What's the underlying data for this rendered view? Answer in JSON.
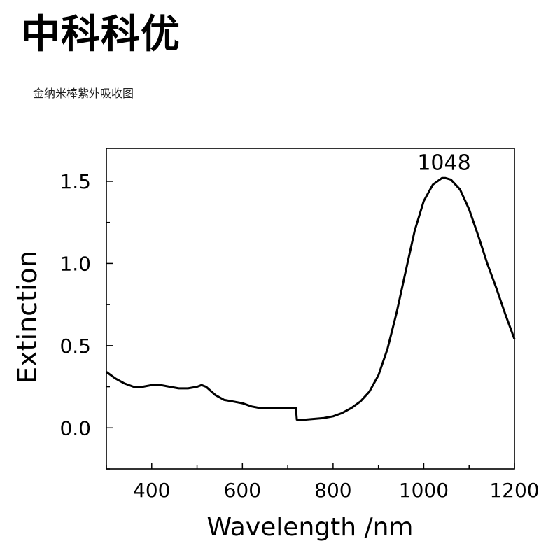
{
  "header": {
    "brand": "中科科优",
    "subtitle": "金纳米棒紫外吸收图"
  },
  "chart_data": {
    "type": "line",
    "xlabel": "Wavelength /nm",
    "ylabel": "Extinction",
    "xlim": [
      300,
      1200
    ],
    "ylim": [
      -0.25,
      1.7
    ],
    "xticks": [
      400,
      600,
      800,
      1000,
      1200
    ],
    "yticks": [
      0.0,
      0.5,
      1.0,
      1.5
    ],
    "ytick_labels": [
      "0.0",
      "0.5",
      "1.0",
      "1.5"
    ],
    "grid": false,
    "line_color": "#000000",
    "annotations": [
      {
        "text": "1048",
        "x": 1048,
        "y": 1.52
      }
    ],
    "series": [
      {
        "x": [
          300,
          320,
          340,
          360,
          380,
          400,
          420,
          440,
          460,
          480,
          500,
          510,
          520,
          540,
          560,
          580,
          600,
          620,
          640,
          660,
          680,
          700,
          718,
          720,
          740,
          760,
          780,
          800,
          820,
          840,
          860,
          880,
          900,
          920,
          940,
          960,
          980,
          1000,
          1020,
          1040,
          1048,
          1060,
          1080,
          1100,
          1120,
          1140,
          1160,
          1180,
          1200
        ],
        "y": [
          0.34,
          0.3,
          0.27,
          0.25,
          0.25,
          0.26,
          0.26,
          0.25,
          0.24,
          0.24,
          0.25,
          0.26,
          0.25,
          0.2,
          0.17,
          0.16,
          0.15,
          0.13,
          0.12,
          0.12,
          0.12,
          0.12,
          0.12,
          0.05,
          0.05,
          0.055,
          0.06,
          0.07,
          0.09,
          0.12,
          0.16,
          0.22,
          0.32,
          0.48,
          0.7,
          0.95,
          1.2,
          1.38,
          1.48,
          1.52,
          1.52,
          1.51,
          1.45,
          1.33,
          1.17,
          1.0,
          0.85,
          0.69,
          0.54
        ]
      }
    ]
  }
}
